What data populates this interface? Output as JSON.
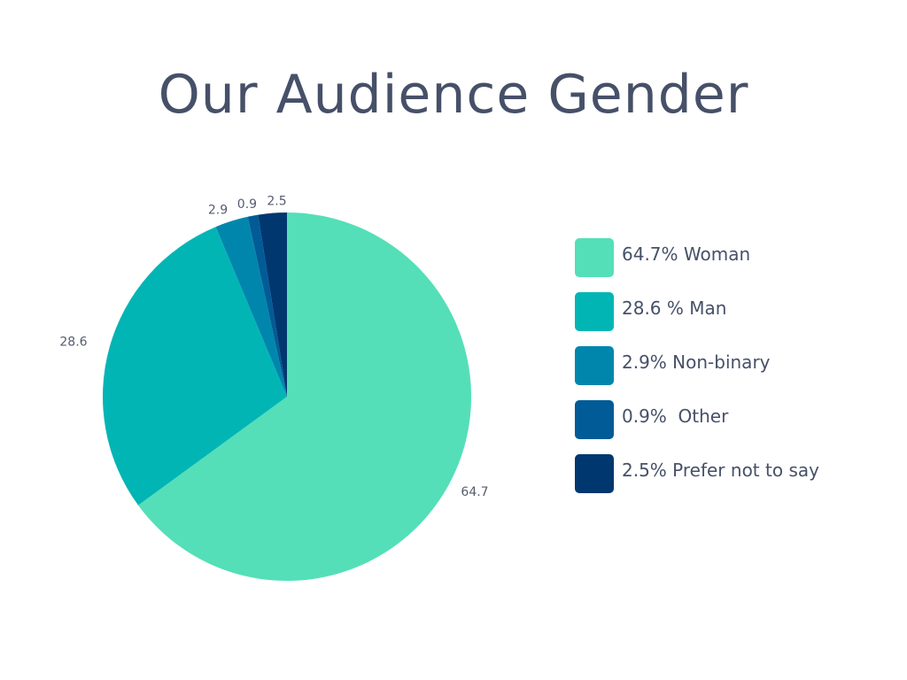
{
  "chart_data": {
    "type": "pie",
    "title": "Our Audience Gender",
    "categories": [
      "Woman",
      "Man",
      "Non-binary",
      "Other",
      "Prefer not to say"
    ],
    "values": [
      64.7,
      28.6,
      2.9,
      0.9,
      2.5
    ],
    "value_labels": [
      "64.7",
      "28.6",
      "2.9",
      "0.9",
      "2.5"
    ],
    "colors": [
      "#54dfb8",
      "#02b5b5",
      "#0086ad",
      "#005b96",
      "#00376f"
    ],
    "legend": {
      "placement": "right",
      "entries": [
        "64.7% Woman",
        "28.6 % Man",
        "2.9% Non-binary",
        "0.9%  Other",
        "2.5% Prefer not to say"
      ]
    }
  }
}
